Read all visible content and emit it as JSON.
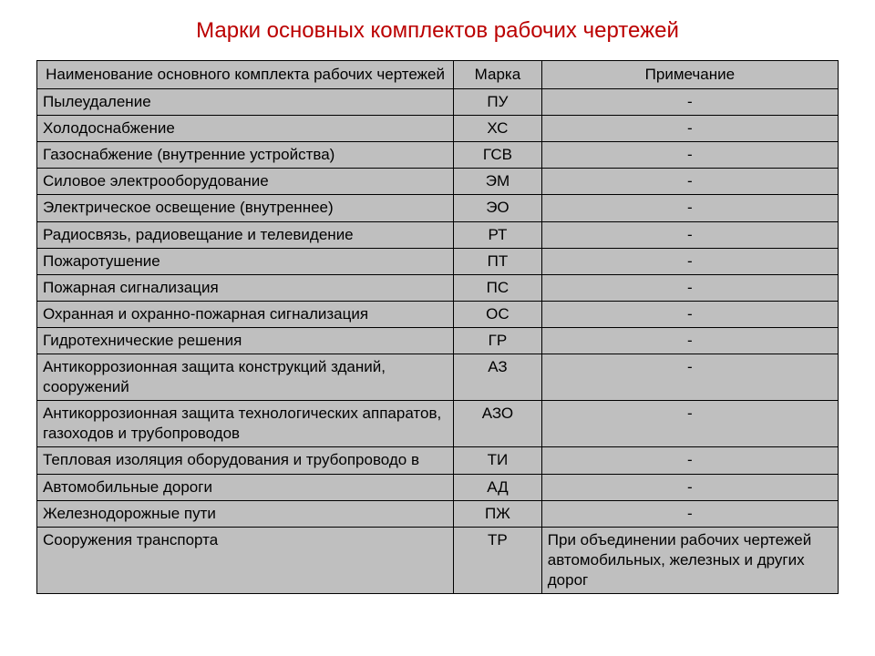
{
  "title": "Марки основных комплектов рабочих чертежей",
  "table": {
    "type": "table",
    "background_color": "#bfbfbf",
    "border_color": "#000000",
    "title_color": "#bb0000",
    "title_fontsize": 24,
    "cell_fontsize": 17,
    "columns": [
      {
        "header": "Наименование основного комплекта рабочих чертежей",
        "width_pct": 52,
        "align_header": "center",
        "align_body": "left"
      },
      {
        "header": "Марка",
        "width_pct": 11,
        "align_header": "center",
        "align_body": "center"
      },
      {
        "header": "Примечание",
        "width_pct": 37,
        "align_header": "center",
        "align_body": "center"
      }
    ],
    "rows": [
      {
        "name": "Пылеудаление",
        "mark": "ПУ",
        "note": "-",
        "note_align": "center"
      },
      {
        "name": "Холодоснабжение",
        "mark": "ХС",
        "note": "-",
        "note_align": "center"
      },
      {
        "name": "Газоснабжение (внутренние устройства)",
        "mark": "ГСВ",
        "note": "-",
        "note_align": "center"
      },
      {
        "name": "Силовое электрооборудование",
        "mark": "ЭМ",
        "note": "-",
        "note_align": "center"
      },
      {
        "name": "Электрическое освещение (внутреннее)",
        "mark": "ЭО",
        "note": "-",
        "note_align": "center"
      },
      {
        "name": "Радиосвязь, радиовещание и телевидение",
        "mark": "РТ",
        "note": "-",
        "note_align": "center"
      },
      {
        "name": "Пожаротушение",
        "mark": "ПТ",
        "note": "-",
        "note_align": "center"
      },
      {
        "name": "Пожарная сигнализация",
        "mark": "ПС",
        "note": "-",
        "note_align": "center"
      },
      {
        "name": "Охранная и охранно-пожарная сигнализация",
        "mark": "ОС",
        "note": "-",
        "note_align": "center"
      },
      {
        "name": "Гидротехнические решения",
        "mark": "ГР",
        "note": "-",
        "note_align": "center"
      },
      {
        "name": "Антикоррозионная защита конструкций зданий, сооружений",
        "mark": "АЗ",
        "note": "-",
        "note_align": "center"
      },
      {
        "name": "Антикоррозионная защита технологических аппаратов, газоходов и трубопроводов",
        "mark": "АЗО",
        "note": "-",
        "note_align": "center"
      },
      {
        "name": "Тепловая изоляция оборудования и трубопроводо в",
        "mark": "ТИ",
        "note": "-",
        "note_align": "center"
      },
      {
        "name": "Автомобильные дороги",
        "mark": "АД",
        "note": "-",
        "note_align": "center"
      },
      {
        "name": "Железнодорожные пути",
        "mark": "ПЖ",
        "note": "-",
        "note_align": "center"
      },
      {
        "name": "Сооружения транспорта",
        "mark": "ТР",
        "note": "При объединении рабочих чертежей автомобильных, железных и других дорог",
        "note_align": "left"
      }
    ]
  }
}
